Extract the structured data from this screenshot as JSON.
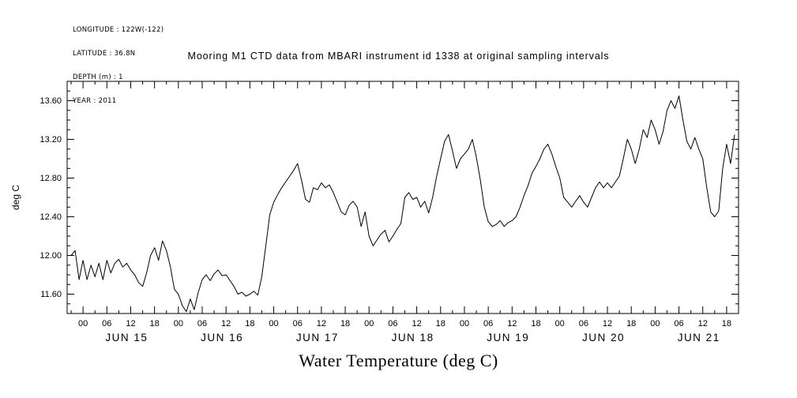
{
  "meta": {
    "longitude": "LONGITUDE : 122W(-122)",
    "latitude": "LATITUDE : 36.8N",
    "depth": "DEPTH (m) : 1",
    "year": "YEAR : 2011"
  },
  "title": "Mooring M1 CTD data from MBARI instrument id 1338 at original sampling intervals",
  "chart_data": {
    "type": "line",
    "title": "Mooring M1 CTD data from MBARI instrument id 1338 at original sampling intervals",
    "xlabel": "Water Temperature (deg C)",
    "ylabel": "deg C",
    "line_color": "#000000",
    "grid": false,
    "ylim": [
      11.4,
      13.8
    ],
    "ytick_values": [
      11.6,
      12.0,
      12.4,
      12.8,
      13.2,
      13.6
    ],
    "ytick_labels": [
      "11.60",
      "12.00",
      "12.40",
      "12.80",
      "13.20",
      "13.60"
    ],
    "y_minor_step": 0.1,
    "xlim_hours": [
      -4,
      165
    ],
    "xtick_step_hours": 6,
    "xtick_labels_cycle": [
      "00",
      "06",
      "12",
      "18"
    ],
    "x_minor_step_hours": 3,
    "x_unit": "hours since JUN 15 2011 00:00",
    "day_labels": [
      "JUN 15",
      "JUN 16",
      "JUN 17",
      "JUN 18",
      "JUN 19",
      "JUN 20",
      "JUN 21"
    ],
    "series": [
      {
        "name": "water_temperature_degC",
        "x_start_hour": -3,
        "x_step_hours": 1,
        "values": [
          12.0,
          12.05,
          11.75,
          11.95,
          11.75,
          11.9,
          11.78,
          11.92,
          11.75,
          11.95,
          11.82,
          11.92,
          11.96,
          11.88,
          11.92,
          11.85,
          11.8,
          11.72,
          11.68,
          11.82,
          12.0,
          12.08,
          11.95,
          12.15,
          12.05,
          11.88,
          11.65,
          11.6,
          11.48,
          11.42,
          11.55,
          11.44,
          11.62,
          11.75,
          11.8,
          11.74,
          11.81,
          11.85,
          11.79,
          11.8,
          11.74,
          11.68,
          11.6,
          11.62,
          11.58,
          11.6,
          11.63,
          11.59,
          11.78,
          12.1,
          12.42,
          12.55,
          12.63,
          12.7,
          12.76,
          12.82,
          12.88,
          12.95,
          12.78,
          12.58,
          12.55,
          12.7,
          12.68,
          12.75,
          12.7,
          12.73,
          12.65,
          12.55,
          12.45,
          12.42,
          12.52,
          12.56,
          12.5,
          12.3,
          12.45,
          12.2,
          12.1,
          12.16,
          12.22,
          12.26,
          12.14,
          12.2,
          12.27,
          12.33,
          12.6,
          12.65,
          12.58,
          12.6,
          12.5,
          12.56,
          12.44,
          12.6,
          12.82,
          13.0,
          13.18,
          13.25,
          13.08,
          12.9,
          13.0,
          13.05,
          13.1,
          13.2,
          13.02,
          12.78,
          12.5,
          12.35,
          12.3,
          12.32,
          12.36,
          12.3,
          12.34,
          12.36,
          12.4,
          12.5,
          12.62,
          12.72,
          12.85,
          12.92,
          13.0,
          13.1,
          13.15,
          13.05,
          12.92,
          12.8,
          12.6,
          12.55,
          12.5,
          12.56,
          12.62,
          12.55,
          12.5,
          12.6,
          12.7,
          12.76,
          12.7,
          12.75,
          12.7,
          12.76,
          12.82,
          13.0,
          13.2,
          13.1,
          12.95,
          13.1,
          13.3,
          13.22,
          13.4,
          13.3,
          13.15,
          13.28,
          13.5,
          13.6,
          13.52,
          13.65,
          13.4,
          13.18,
          13.1,
          13.22,
          13.1,
          13.0,
          12.7,
          12.45,
          12.4,
          12.46,
          12.9,
          13.15,
          12.95,
          13.25
        ]
      }
    ]
  }
}
